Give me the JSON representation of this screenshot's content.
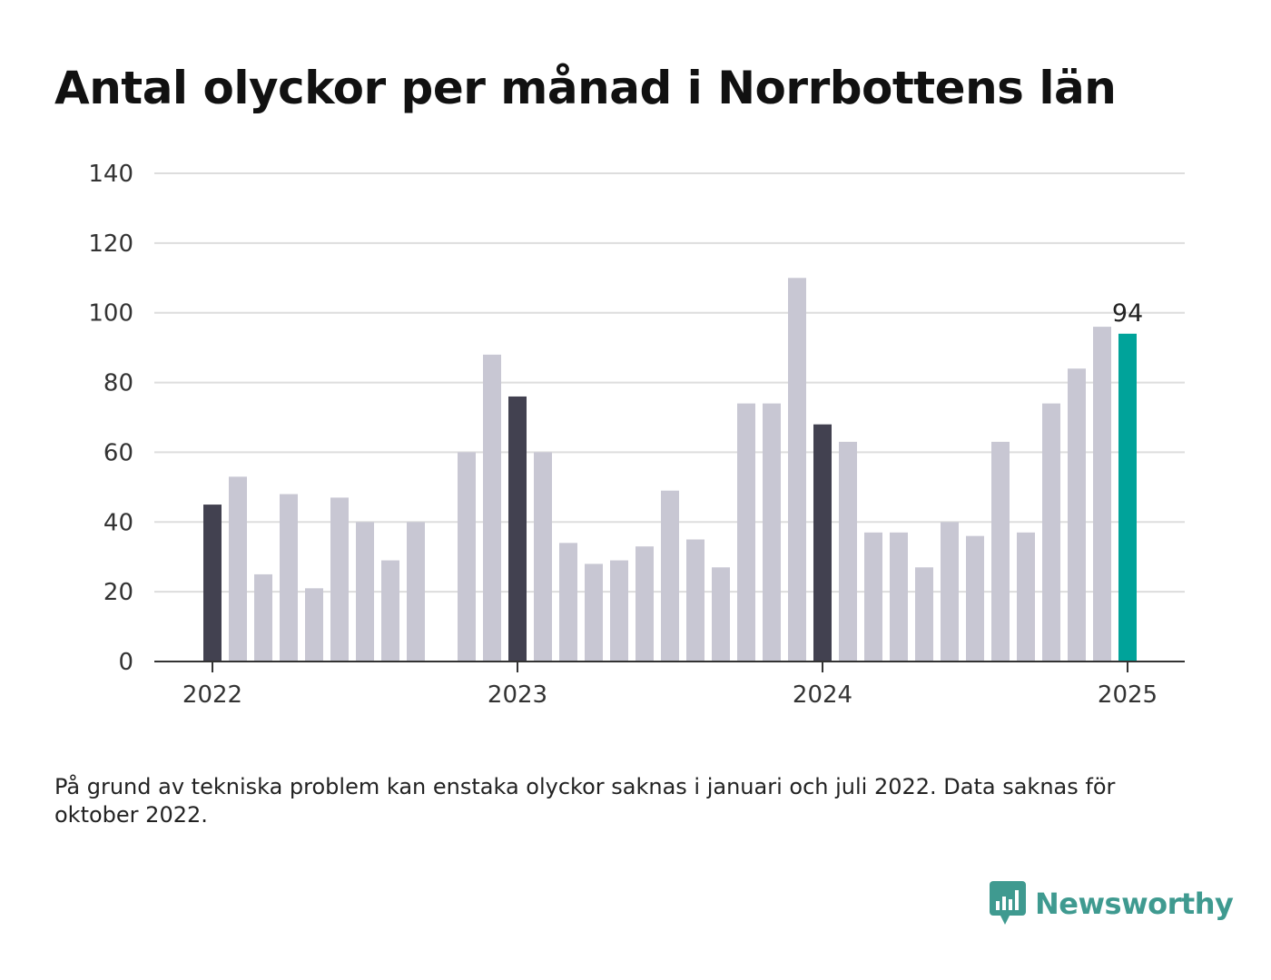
{
  "title": "Antal olyckor per månad i Norrbottens län",
  "footnote": "På grund av tekniska problem kan enstaka olyckor saknas i januari och juli 2022. Data saknas för oktober 2022.",
  "brand": {
    "name": "Newsworthy",
    "icon": "newsworthy-logo-icon"
  },
  "colors": {
    "bar_default": "#c8c7d3",
    "bar_january": "#424150",
    "bar_latest": "#00a39a",
    "grid": "#dddddd",
    "axis": "#333333",
    "brand": "#3f9a90"
  },
  "chart_data": {
    "type": "bar",
    "ylim": [
      0,
      140
    ],
    "yticks": [
      0,
      20,
      40,
      60,
      80,
      100,
      120,
      140
    ],
    "xticks": [
      "2022",
      "2023",
      "2024",
      "2025"
    ],
    "grid": true,
    "categories": [
      "2022-01",
      "2022-02",
      "2022-03",
      "2022-04",
      "2022-05",
      "2022-06",
      "2022-07",
      "2022-08",
      "2022-09",
      "2022-10",
      "2022-11",
      "2022-12",
      "2023-01",
      "2023-02",
      "2023-03",
      "2023-04",
      "2023-05",
      "2023-06",
      "2023-07",
      "2023-08",
      "2023-09",
      "2023-10",
      "2023-11",
      "2023-12",
      "2024-01",
      "2024-02",
      "2024-03",
      "2024-04",
      "2024-05",
      "2024-06",
      "2024-07",
      "2024-08",
      "2024-09",
      "2024-10",
      "2024-11",
      "2024-12",
      "2025-01"
    ],
    "values": [
      45,
      53,
      25,
      48,
      21,
      47,
      40,
      29,
      40,
      null,
      60,
      88,
      76,
      60,
      34,
      28,
      29,
      33,
      49,
      35,
      27,
      74,
      74,
      110,
      68,
      63,
      37,
      37,
      27,
      40,
      36,
      63,
      37,
      74,
      84,
      96,
      94
    ],
    "highlight_label": "94"
  }
}
